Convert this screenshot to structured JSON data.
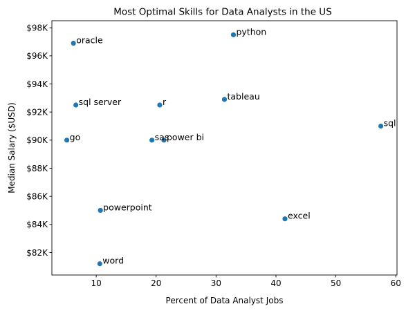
{
  "chart_data": {
    "type": "scatter",
    "title": "Most Optimal Skills for Data Analysts in the US",
    "xlabel": "Percent of Data Analyst Jobs",
    "ylabel": "Median Salary ($USD)",
    "xlim": [
      2.6,
      60.2
    ],
    "ylim": [
      80400,
      98500
    ],
    "x_ticks": [
      10,
      20,
      30,
      40,
      50,
      60
    ],
    "x_tick_labels": [
      "10",
      "20",
      "30",
      "40",
      "50",
      "60"
    ],
    "y_ticks": [
      82000,
      84000,
      86000,
      88000,
      90000,
      92000,
      94000,
      96000,
      98000
    ],
    "y_tick_labels": [
      "$82K",
      "$84K",
      "$86K",
      "$88K",
      "$90K",
      "$92K",
      "$94K",
      "$96K",
      "$98K"
    ],
    "grid": false,
    "marker_color": "#1f77b4",
    "points": [
      {
        "label": "python",
        "x": 32.9,
        "y": 97500
      },
      {
        "label": "oracle",
        "x": 6.2,
        "y": 96900
      },
      {
        "label": "tableau",
        "x": 31.4,
        "y": 92900
      },
      {
        "label": "sql server",
        "x": 6.6,
        "y": 92500
      },
      {
        "label": "r",
        "x": 20.6,
        "y": 92500
      },
      {
        "label": "sql",
        "x": 57.5,
        "y": 91000
      },
      {
        "label": "go",
        "x": 5.1,
        "y": 90000
      },
      {
        "label": "power bi",
        "x": 21.3,
        "y": 90000
      },
      {
        "label": "powerpoint",
        "x": 10.7,
        "y": 85000
      },
      {
        "label": "excel",
        "x": 41.5,
        "y": 84400
      },
      {
        "label": "word",
        "x": 10.6,
        "y": 81200
      },
      {
        "label": "sas",
        "x": 19.3,
        "y": 90000
      }
    ]
  }
}
